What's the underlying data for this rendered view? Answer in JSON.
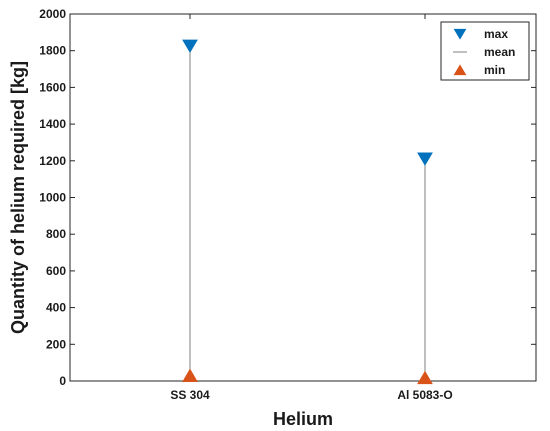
{
  "chart_data": {
    "type": "scatter",
    "title": "",
    "xlabel": "Helium",
    "ylabel": "Quantity of helium required [kg]",
    "categories": [
      "SS 304",
      "Al 5083-O"
    ],
    "ylim": [
      0,
      2000
    ],
    "yticks": [
      0,
      200,
      400,
      600,
      800,
      1000,
      1200,
      1400,
      1600,
      1800,
      2000
    ],
    "grid": false,
    "legend_position": "top-right",
    "series": [
      {
        "name": "max",
        "marker": "triangle-down",
        "color": "#0072BD",
        "values": [
          1825,
          1210
        ]
      },
      {
        "name": "mean",
        "marker": "line",
        "color": "#7f7f7f",
        "values": [
          30,
          18
        ]
      },
      {
        "name": "min",
        "marker": "triangle-up",
        "color": "#D95319",
        "values": [
          30,
          18
        ]
      }
    ]
  }
}
